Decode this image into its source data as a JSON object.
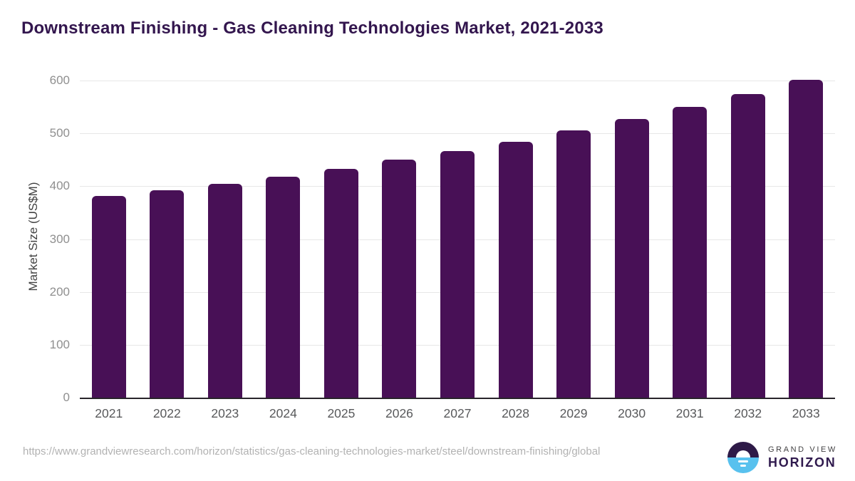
{
  "title": "Downstream Finishing - Gas Cleaning Technologies Market, 2021-2033",
  "source_url": "https://www.grandviewresearch.com/horizon/statistics/gas-cleaning-technologies-market/steel/downstream-finishing/global",
  "logo": {
    "line1": "GRAND VIEW",
    "line2": "HORIZON",
    "mark_top_color": "#2e1a47",
    "mark_bottom_color": "#58c1ee"
  },
  "colors": {
    "bar": "#481056",
    "title": "#33164e",
    "gridline": "#e7e7e7",
    "axis_line": "#28242a",
    "y_tick": "#8f8f8f",
    "x_tick": "#58595b",
    "url_text": "#b2b2b2"
  },
  "chart_data": {
    "type": "bar",
    "title": "Downstream Finishing - Gas Cleaning Technologies Market, 2021-2033",
    "categories": [
      "2021",
      "2022",
      "2023",
      "2024",
      "2025",
      "2026",
      "2027",
      "2028",
      "2029",
      "2030",
      "2031",
      "2032",
      "2033"
    ],
    "values": [
      381,
      392,
      405,
      418,
      433,
      450,
      467,
      484,
      505,
      527,
      550,
      575,
      602
    ],
    "xlabel": "",
    "ylabel": "Market Size (US$M)",
    "ylim": [
      0,
      600
    ],
    "yticks": [
      0,
      100,
      200,
      300,
      400,
      500,
      600
    ],
    "grid": true,
    "legend": "none",
    "bar_color": "#481056"
  }
}
